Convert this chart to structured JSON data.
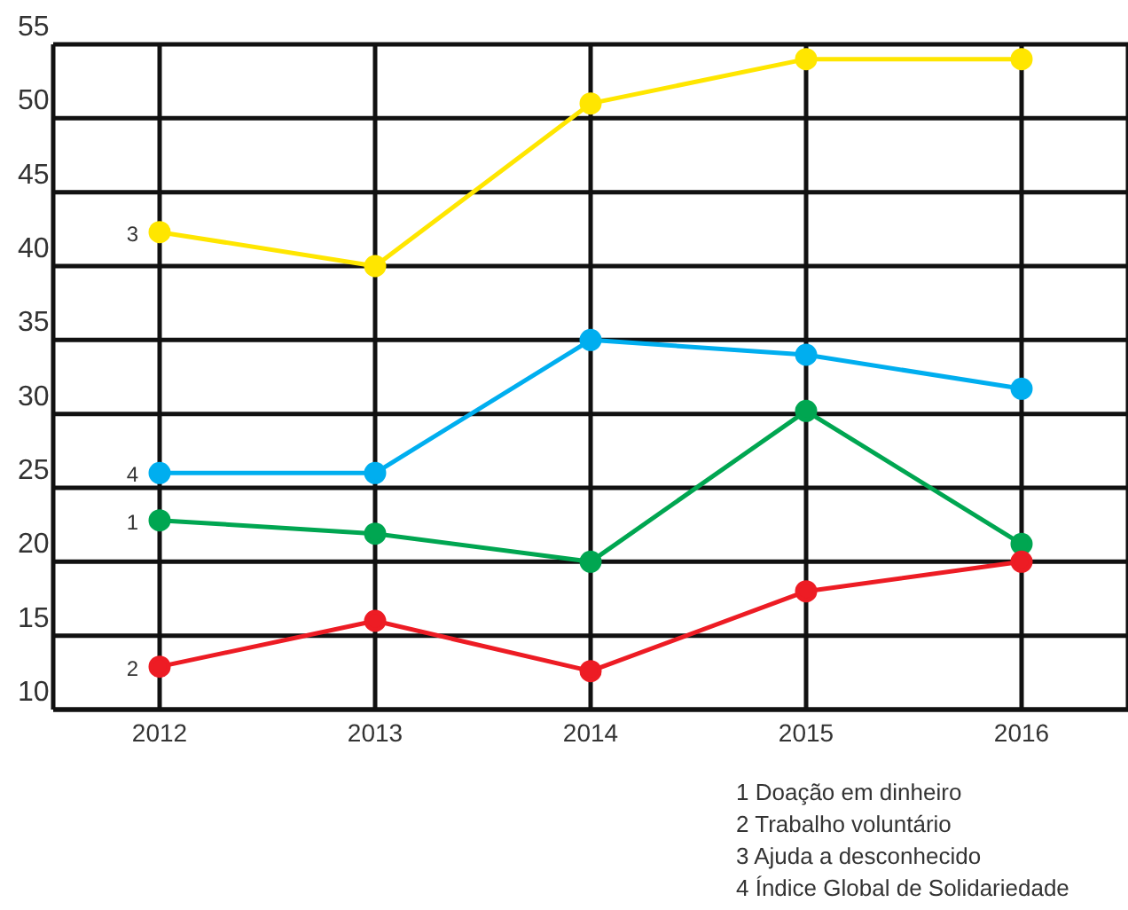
{
  "chart_data": {
    "type": "line",
    "categories": [
      "2012",
      "2013",
      "2014",
      "2015",
      "2016"
    ],
    "series": [
      {
        "name": "1",
        "color": "#00a651",
        "values": [
          22.8,
          21.9,
          20,
          30.2,
          21.2
        ]
      },
      {
        "name": "2",
        "color": "#ed1c24",
        "values": [
          12.9,
          16,
          12.6,
          18,
          20
        ]
      },
      {
        "name": "3",
        "color": "#ffe600",
        "values": [
          42.3,
          40,
          51,
          54,
          54
        ]
      },
      {
        "name": "4",
        "color": "#00aeef",
        "values": [
          26,
          26,
          35,
          34,
          31.7
        ]
      }
    ],
    "ylim": [
      10,
      55
    ],
    "yticks": [
      10,
      15,
      20,
      25,
      30,
      35,
      40,
      45,
      50,
      55
    ],
    "grid": true,
    "marker": "circle",
    "line_style": "solid",
    "annotations": [
      "1 Doação em dinheiro",
      "2 Trabalho voluntário",
      "3 Ajuda a desconhecido",
      "4 Índice Global de Solidariedade"
    ]
  }
}
